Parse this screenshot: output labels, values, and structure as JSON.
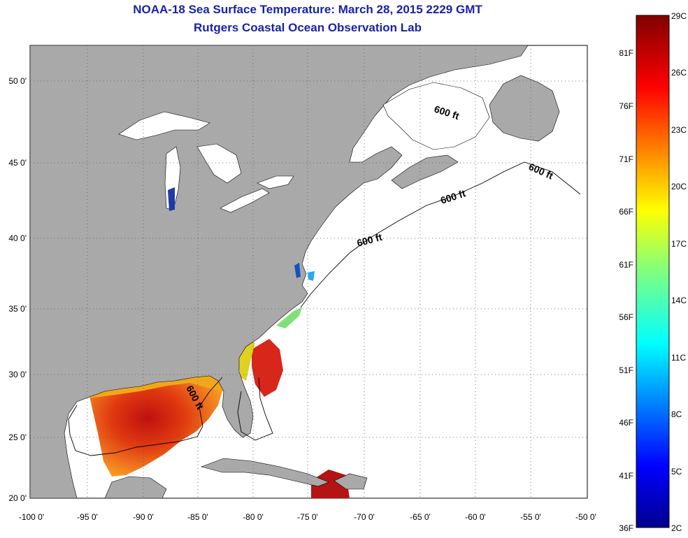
{
  "header": {
    "title": "NOAA-18 Sea Surface Temperature:  March 28, 2015 2229 GMT",
    "subtitle": "Rutgers Coastal Ocean Observation Lab"
  },
  "map": {
    "longitude_ticks": [
      "-100 0'",
      "-95 0'",
      "-90 0'",
      "-85 0'",
      "-80 0'",
      "-75 0'",
      "-70 0'",
      "-65 0'",
      "-60 0'",
      "-55 0'",
      "-50 0'"
    ],
    "latitude_ticks": [
      "50 0'",
      "45 0'",
      "40 0'",
      "35 0'",
      "30 0'",
      "25 0'",
      "20 0'"
    ],
    "contour_labels": [
      "600 ft",
      "600 ft",
      "600 ft",
      "600 ft",
      "600 ft"
    ],
    "colors": {
      "land": "#a9a9a9",
      "ocean_no_data": "#ffffff",
      "grid": "#555555",
      "title": "#1a22a8"
    }
  },
  "colorbar": {
    "celsius_labels": [
      "29C",
      "26C",
      "23C",
      "20C",
      "17C",
      "14C",
      "11C",
      "8C",
      "5C",
      "2C"
    ],
    "fahrenheit_labels": [
      "81F",
      "76F",
      "71F",
      "66F",
      "61F",
      "56F",
      "51F",
      "46F",
      "41F",
      "36F"
    ]
  }
}
